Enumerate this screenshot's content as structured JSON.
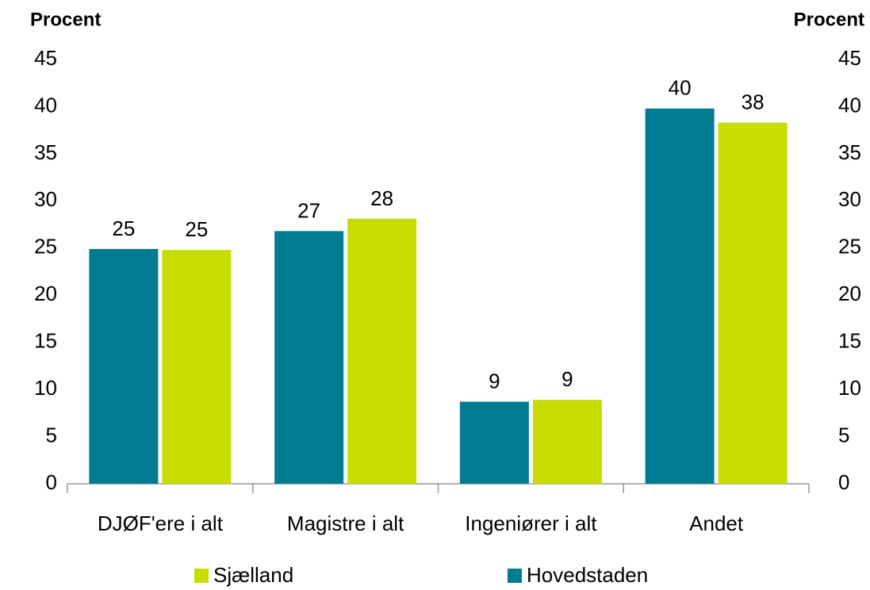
{
  "chart_data": {
    "type": "bar",
    "y_label": "Procent",
    "y2_label": "Procent",
    "categories": [
      "DJØF'ere i alt",
      "Magistre i alt",
      "Ingeniører i alt",
      "Andet"
    ],
    "series": [
      {
        "name": "Hovedstaden",
        "color": "#007c91",
        "values": [
          24.9,
          26.8,
          8.7,
          39.8
        ],
        "value_labels": [
          "25",
          "27",
          "9",
          "40"
        ]
      },
      {
        "name": "Sjælland",
        "color": "#c8dc00",
        "values": [
          24.8,
          28.1,
          8.9,
          38.3
        ],
        "value_labels": [
          "25",
          "28",
          "9",
          "38"
        ]
      }
    ],
    "ylim": [
      0,
      45
    ],
    "yticks": [
      0,
      5,
      10,
      15,
      20,
      25,
      30,
      35,
      40,
      45
    ],
    "y2lim": [
      0,
      45
    ],
    "y2ticks": [
      0,
      5,
      10,
      15,
      20,
      25,
      30,
      35,
      40,
      45
    ],
    "grid": false
  }
}
